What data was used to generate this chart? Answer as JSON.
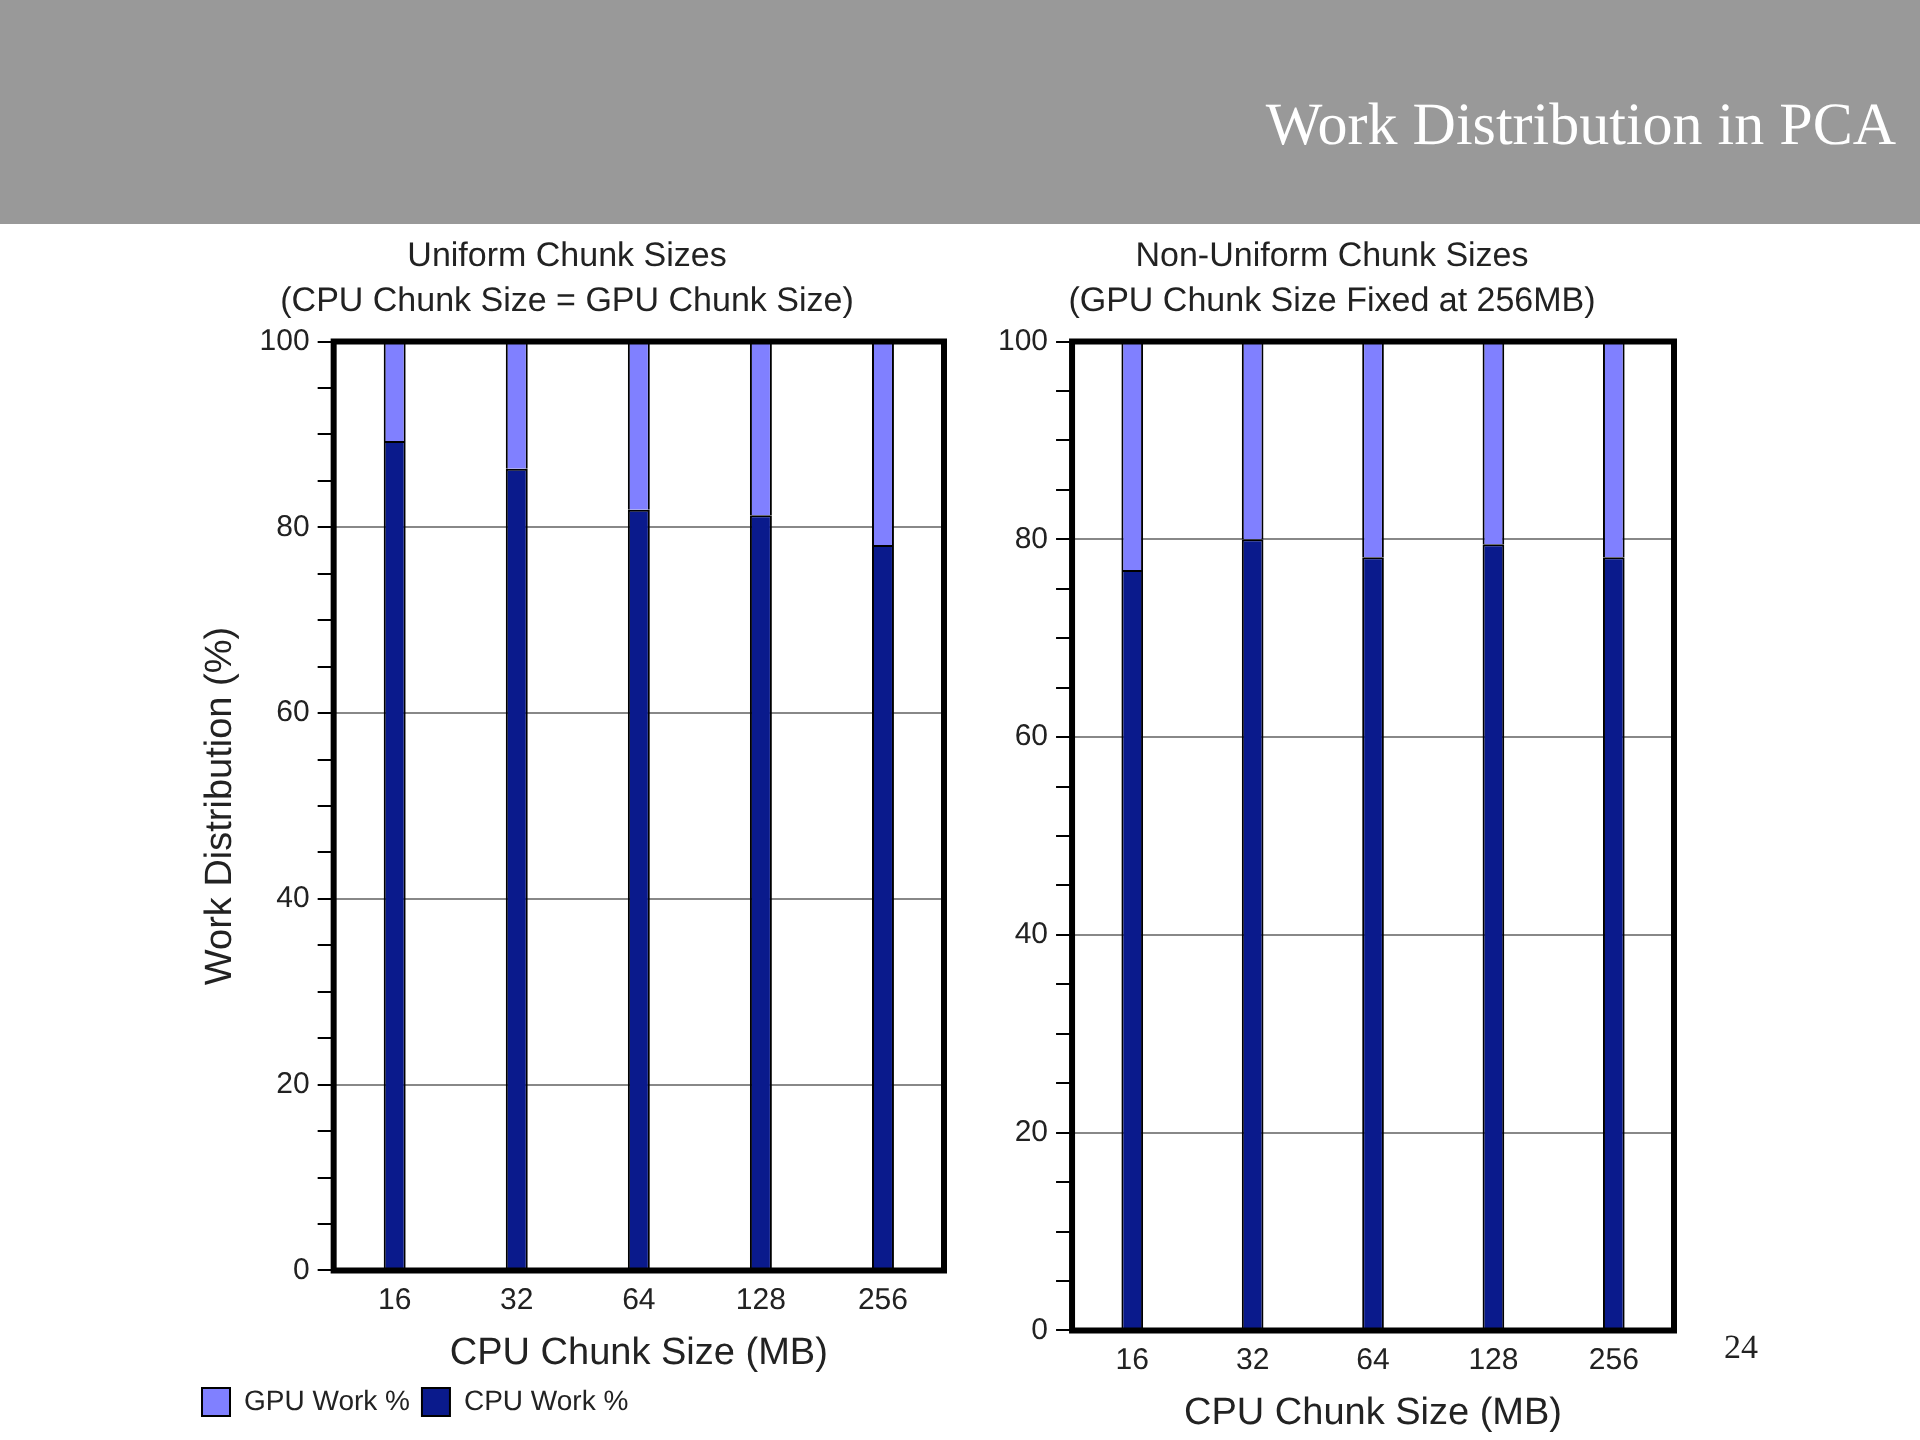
{
  "chart_data": [
    {
      "type": "bar",
      "title": "Uniform Chunk Sizes",
      "subtitle": "(CPU Chunk Size = GPU Chunk Size)",
      "xlabel": "CPU Chunk Size (MB)",
      "ylabel": "Work Distribution (%)",
      "annotations": [
        "Work Distribution in PCA",
        "24"
      ],
      "categories": [
        "16",
        "32",
        "64",
        "128",
        "256"
      ],
      "stacked": true,
      "series": [
        {
          "name": "CPU Work %",
          "color": "#0a1a8c",
          "values": [
            89.3,
            86.3,
            81.9,
            81.3,
            78.1
          ]
        },
        {
          "name": "GPU Work %",
          "color": "#8080ff",
          "values": [
            10.7,
            13.7,
            18.1,
            18.7,
            21.9
          ]
        }
      ],
      "ylim": [
        0,
        100
      ],
      "yticks": [
        0,
        {
          "value": 5,
          "label": null
        },
        {
          "value": 10,
          "label": null
        },
        {
          "value": 15,
          "label": null
        },
        20,
        {
          "value": 25,
          "label": null
        },
        {
          "value": 30,
          "label": null
        },
        {
          "value": 35,
          "label": null
        },
        40,
        {
          "value": 45,
          "label": null
        },
        {
          "value": 50,
          "label": null
        },
        {
          "value": 55,
          "label": null
        },
        60,
        {
          "value": 65,
          "label": null
        },
        {
          "value": 70,
          "label": null
        },
        {
          "value": 75,
          "label": null
        },
        80,
        {
          "value": 85,
          "label": null
        },
        {
          "value": 90,
          "label": null
        },
        {
          "value": 95,
          "label": null
        },
        100
      ],
      "grid": "y",
      "legend": "bottom left"
    },
    {
      "type": "bar",
      "title": "Non-Uniform Chunk Sizes",
      "subtitle": "(GPU Chunk Size Fixed at 256MB)",
      "xlabel": "CPU Chunk Size (MB)",
      "categories": [
        "16",
        "32",
        "64",
        "128",
        "256"
      ],
      "stacked": true,
      "series": [
        {
          "color": "#0a1a8c",
          "values": [
            76.9,
            80.0,
            78.2,
            79.5,
            78.2
          ]
        },
        {
          "color": "#8080ff",
          "values": [
            23.1,
            20.0,
            21.8,
            20.5,
            21.8
          ]
        }
      ],
      "ylim": [
        0,
        100
      ],
      "yticks": [
        0,
        {
          "value": 5,
          "label": null
        },
        {
          "value": 10,
          "label": null
        },
        {
          "value": 15,
          "label": null
        },
        20,
        {
          "value": 25,
          "label": null
        },
        {
          "value": 30,
          "label": null
        },
        {
          "value": 35,
          "label": null
        },
        40,
        {
          "value": 45,
          "label": null
        },
        {
          "value": 50,
          "label": null
        },
        {
          "value": 55,
          "label": null
        },
        60,
        {
          "value": 65,
          "label": null
        },
        {
          "value": 70,
          "label": null
        },
        {
          "value": 75,
          "label": null
        },
        80,
        {
          "value": 85,
          "label": null
        },
        {
          "value": 90,
          "label": null
        },
        {
          "value": 95,
          "label": null
        },
        100
      ],
      "grid": "y",
      "legend": false
    }
  ]
}
